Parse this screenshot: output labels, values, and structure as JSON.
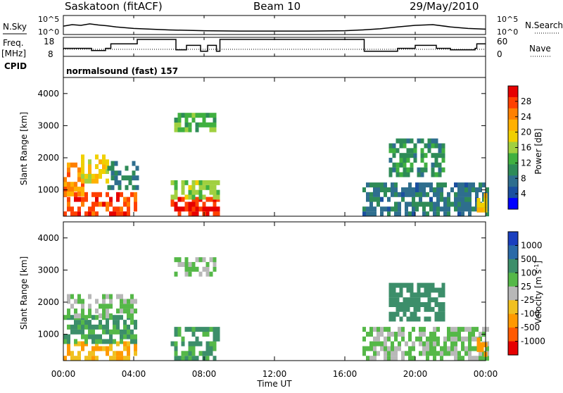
{
  "header": {
    "station": "Saskatoon (fitACF)",
    "beam": "Beam 10",
    "date": "29/May/2010"
  },
  "left_labels": {
    "nsky": "N.Sky",
    "freq": "Freq.",
    "freq_unit": "[MHz]",
    "cpid": "CPID"
  },
  "right_labels": {
    "nsearch": "N.Search",
    "nave": "Nave"
  },
  "noise_panel": {
    "ticks_left": [
      "10^5",
      "10^0"
    ],
    "ticks_right": [
      "10^5",
      "10^0"
    ]
  },
  "freq_panel": {
    "ticks_left": [
      "18",
      "8"
    ],
    "ticks_right": [
      "60",
      "0"
    ]
  },
  "cpid_text": "normalsound (fast) 157",
  "x_axis": {
    "ticks": [
      "00:00",
      "04:00",
      "08:00",
      "12:00",
      "16:00",
      "20:00",
      "00:00"
    ],
    "label": "Time UT"
  },
  "power_panel": {
    "ylabel": "Slant Range [km]",
    "yticks": [
      "1000",
      "2000",
      "3000",
      "4000"
    ],
    "cbar_label": "Power [dB]",
    "cbar_ticks": [
      "28",
      "24",
      "20",
      "16",
      "12",
      "8",
      "4"
    ],
    "cbar_colors": [
      "#e60000",
      "#ff4000",
      "#ff8000",
      "#ffb000",
      "#f0d000",
      "#a0d040",
      "#40b040",
      "#2e8b57",
      "#2e6e8e",
      "#1a4fa0",
      "#0000ff"
    ]
  },
  "velocity_panel": {
    "ylabel": "Slant Range [km]",
    "yticks": [
      "1000",
      "2000",
      "3000",
      "4000"
    ],
    "cbar_label": "Velocity [m s",
    "cbar_label_sup": "-1",
    "cbar_label_end": "]",
    "cbar_ticks": [
      "1000",
      "500",
      "100",
      "25",
      "-25",
      "-100",
      "-500",
      "-1000"
    ],
    "cbar_colors": [
      "#1a3fbf",
      "#2a6aa8",
      "#3c8e6a",
      "#55b848",
      "#b8b8b8",
      "#f0c020",
      "#ff9900",
      "#ff5a00",
      "#e60000"
    ]
  },
  "chart_data": {
    "type": "heatmap",
    "x_range_hours": [
      0,
      24
    ],
    "y_range_km": [
      180,
      4500
    ],
    "noise_sky_level": [
      [
        0,
        2.2
      ],
      [
        0.5,
        2.6
      ],
      [
        1,
        2.4
      ],
      [
        1.5,
        2.8
      ],
      [
        2,
        2.5
      ],
      [
        2.5,
        2.3
      ],
      [
        3,
        2.0
      ],
      [
        4,
        1.6
      ],
      [
        6,
        1.2
      ],
      [
        8,
        1.0
      ],
      [
        10,
        0.9
      ],
      [
        12,
        0.9
      ],
      [
        14,
        0.9
      ],
      [
        16,
        1.0
      ],
      [
        17,
        1.2
      ],
      [
        18,
        1.5
      ],
      [
        19,
        2.0
      ],
      [
        20,
        2.4
      ],
      [
        21,
        2.6
      ],
      [
        22,
        2.0
      ],
      [
        23,
        1.6
      ],
      [
        24,
        1.4
      ]
    ],
    "frequency_mhz": [
      [
        0,
        12
      ],
      [
        1,
        12
      ],
      [
        1.6,
        10.5
      ],
      [
        2.4,
        12
      ],
      [
        2.7,
        15
      ],
      [
        4.1,
        15
      ],
      [
        4.2,
        18
      ],
      [
        6.0,
        18
      ],
      [
        6.4,
        11
      ],
      [
        7.0,
        14
      ],
      [
        7.8,
        10
      ],
      [
        8.2,
        14
      ],
      [
        8.7,
        10
      ],
      [
        8.9,
        18
      ],
      [
        17.0,
        18
      ],
      [
        17.1,
        10
      ],
      [
        19.0,
        12
      ],
      [
        20.0,
        14
      ],
      [
        21.2,
        12
      ],
      [
        22.0,
        11
      ],
      [
        23.4,
        12
      ],
      [
        23.5,
        15
      ],
      [
        24,
        15
      ]
    ],
    "power_blocks": [
      {
        "t": [
          0,
          4.2
        ],
        "r": [
          180,
          800
        ],
        "level": 26
      },
      {
        "t": [
          0,
          1.2
        ],
        "r": [
          800,
          1800
        ],
        "level": 22
      },
      {
        "t": [
          1.0,
          2.6
        ],
        "r": [
          1200,
          2100
        ],
        "level": 18
      },
      {
        "t": [
          2.5,
          4.2
        ],
        "r": [
          1000,
          1800
        ],
        "level": 8
      },
      {
        "t": [
          6.1,
          8.8
        ],
        "r": [
          180,
          700
        ],
        "level": 27
      },
      {
        "t": [
          6.1,
          8.8
        ],
        "r": [
          700,
          1300
        ],
        "level": 14
      },
      {
        "t": [
          6.3,
          8.6
        ],
        "r": [
          2800,
          3400
        ],
        "level": 12
      },
      {
        "t": [
          17.0,
          24
        ],
        "r": [
          180,
          1200
        ],
        "level": 7
      },
      {
        "t": [
          18.5,
          21.5
        ],
        "r": [
          1400,
          2500
        ],
        "level": 9
      },
      {
        "t": [
          23.5,
          24
        ],
        "r": [
          300,
          900
        ],
        "level": 18
      }
    ],
    "velocity_blocks": [
      {
        "t": [
          0,
          4.2
        ],
        "r": [
          180,
          700
        ],
        "v": -120
      },
      {
        "t": [
          0,
          4.2
        ],
        "r": [
          700,
          1500
        ],
        "v": 80
      },
      {
        "t": [
          0,
          4.2
        ],
        "r": [
          1500,
          2200
        ],
        "v": 0
      },
      {
        "t": [
          6.1,
          8.8
        ],
        "r": [
          180,
          1100
        ],
        "v": 90
      },
      {
        "t": [
          6.3,
          8.6
        ],
        "r": [
          2800,
          3400
        ],
        "v": 0
      },
      {
        "t": [
          17.0,
          24
        ],
        "r": [
          180,
          1200
        ],
        "v": 10
      },
      {
        "t": [
          18.5,
          21.5
        ],
        "r": [
          1400,
          2500
        ],
        "v": 200
      },
      {
        "t": [
          23.5,
          24
        ],
        "r": [
          300,
          900
        ],
        "v": -300
      }
    ]
  }
}
